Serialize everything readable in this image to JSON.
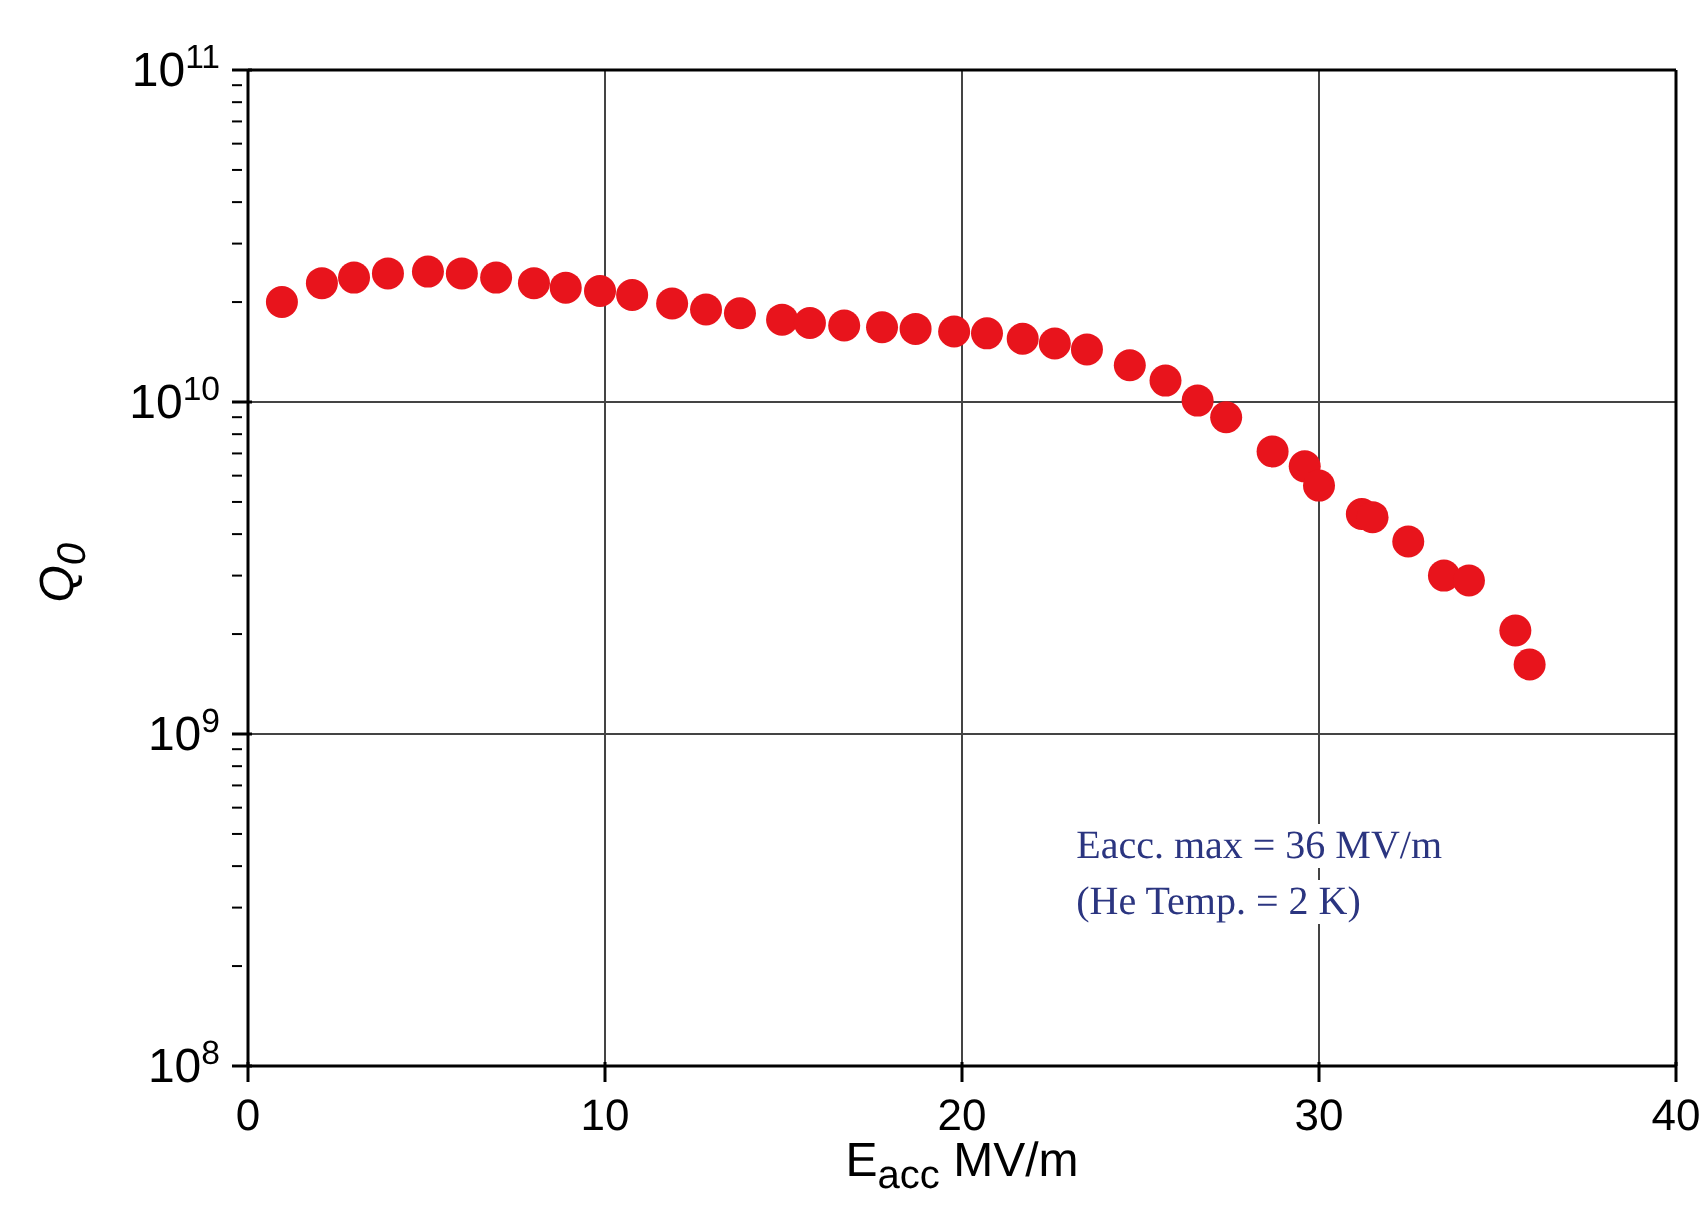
{
  "chart_data": {
    "type": "scatter",
    "xlabel": "E$_{acc}$  MV/m",
    "ylabel": "Q$_{0}$",
    "x": [
      0.95,
      2.07,
      2.97,
      3.92,
      5.04,
      5.99,
      6.95,
      8.01,
      8.9,
      9.86,
      10.76,
      11.88,
      12.83,
      13.78,
      14.96,
      15.74,
      16.7,
      17.76,
      18.7,
      19.78,
      20.7,
      21.7,
      22.6,
      23.5,
      24.7,
      25.7,
      26.6,
      27.4,
      28.7,
      29.6,
      30.0,
      31.2,
      31.5,
      32.5,
      33.5,
      34.2,
      35.5,
      35.9
    ],
    "series": [
      {
        "color": "#e8141c",
        "values": [
          20000000000.0,
          22800000000.0,
          23700000000.0,
          24400000000.0,
          24700000000.0,
          24400000000.0,
          23700000000.0,
          22800000000.0,
          22100000000.0,
          21600000000.0,
          21000000000.0,
          19800000000.0,
          19000000000.0,
          18500000000.0,
          17700000000.0,
          17300000000.0,
          17000000000.0,
          16800000000.0,
          16600000000.0,
          16300000000.0,
          16100000000.0,
          15500000000.0,
          15000000000.0,
          14400000000.0,
          12900000000.0,
          11600000000.0,
          10100000000.0,
          9000000000.0,
          7100000000.0,
          6400000000.0,
          5600000000.0,
          4600000000.0,
          4500000000.0,
          3800000000.0,
          3000000000.0,
          2900000000.0,
          2050000000.0,
          1620000000.0
        ]
      }
    ],
    "xlim": [
      0,
      40
    ],
    "xticks": [
      0,
      10,
      20,
      30,
      40
    ],
    "ylim": [
      100000000.0,
      100000000000.0
    ],
    "yticks": [
      {
        "value": 100000000.0,
        "label": "10$^{8}$"
      },
      {
        "value": 200000000.0,
        "label": null
      },
      {
        "value": 300000000.0,
        "label": null
      },
      {
        "value": 400000000.0,
        "label": null
      },
      {
        "value": 500000000.0,
        "label": null
      },
      {
        "value": 600000000.0,
        "label": null
      },
      {
        "value": 700000000.0,
        "label": null
      },
      {
        "value": 800000000.0,
        "label": null
      },
      {
        "value": 900000000.0,
        "label": null
      },
      {
        "value": 1000000000.0,
        "label": "10$^{9}$"
      },
      {
        "value": 2000000000.0,
        "label": null
      },
      {
        "value": 3000000000.0,
        "label": null
      },
      {
        "value": 4000000000.0,
        "label": null
      },
      {
        "value": 5000000000.0,
        "label": null
      },
      {
        "value": 6000000000.0,
        "label": null
      },
      {
        "value": 7000000000.0,
        "label": null
      },
      {
        "value": 8000000000.0,
        "label": null
      },
      {
        "value": 9000000000.0,
        "label": null
      },
      {
        "value": 10000000000.0,
        "label": "10$^{10}$"
      },
      {
        "value": 20000000000.0,
        "label": null
      },
      {
        "value": 30000000000.0,
        "label": null
      },
      {
        "value": 40000000000.0,
        "label": null
      },
      {
        "value": 50000000000.0,
        "label": null
      },
      {
        "value": 60000000000.0,
        "label": null
      },
      {
        "value": 70000000000.0,
        "label": null
      },
      {
        "value": 80000000000.0,
        "label": null
      },
      {
        "value": 90000000000.0,
        "label": null
      },
      {
        "value": 100000000000.0,
        "label": "10$^{11}$"
      }
    ],
    "log": "y",
    "grid": true,
    "marker": "circle",
    "annotations": [
      "Eacc. max = 36 MV/m",
      "(He Temp. = 2 K)"
    ]
  }
}
